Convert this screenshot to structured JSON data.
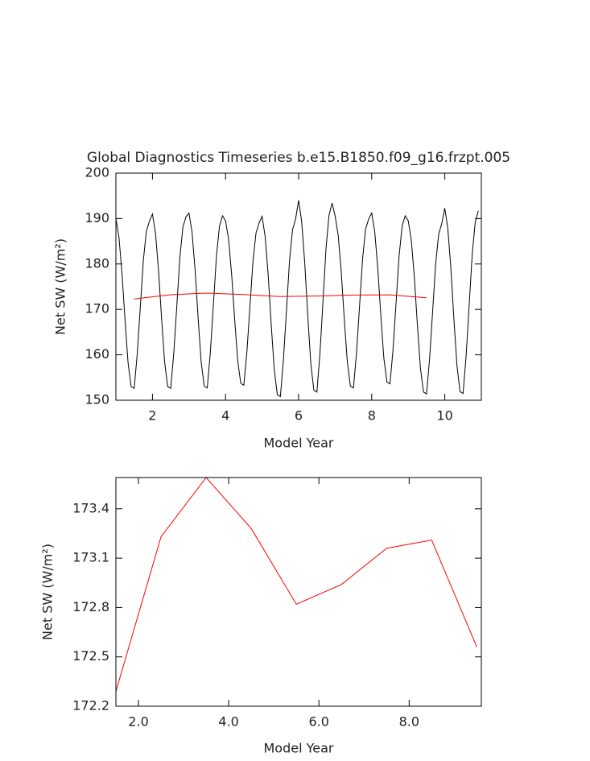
{
  "chart_data": [
    {
      "type": "line",
      "title": "Global Diagnostics Timeseries b.e15.B1850.f09_g16.frzpt.005",
      "x_label": "Model Year",
      "y_label": "Net SW (W/m²)",
      "xlim": [
        1,
        11
      ],
      "xticks": [
        2,
        4,
        6,
        8,
        10
      ],
      "ylim": [
        150,
        200
      ],
      "yticks": [
        150,
        160,
        170,
        180,
        190,
        200
      ],
      "series": [
        {
          "color": "#000000",
          "x": [
            1,
            1.083,
            1.167,
            1.25,
            1.333,
            1.417,
            1.5,
            1.583,
            1.667,
            1.75,
            1.833,
            1.917,
            2,
            2.083,
            2.167,
            2.25,
            2.333,
            2.417,
            2.5,
            2.583,
            2.667,
            2.75,
            2.833,
            2.917,
            3,
            3.083,
            3.167,
            3.25,
            3.333,
            3.417,
            3.5,
            3.583,
            3.667,
            3.75,
            3.833,
            3.917,
            4,
            4.083,
            4.167,
            4.25,
            4.333,
            4.417,
            4.5,
            4.583,
            4.667,
            4.75,
            4.833,
            4.917,
            5,
            5.083,
            5.167,
            5.25,
            5.333,
            5.417,
            5.5,
            5.583,
            5.667,
            5.75,
            5.833,
            5.917,
            6,
            6.083,
            6.167,
            6.25,
            6.333,
            6.417,
            6.5,
            6.583,
            6.667,
            6.75,
            6.833,
            6.917,
            7,
            7.083,
            7.167,
            7.25,
            7.333,
            7.417,
            7.5,
            7.583,
            7.667,
            7.75,
            7.833,
            7.917,
            8,
            8.083,
            8.167,
            8.25,
            8.333,
            8.417,
            8.5,
            8.583,
            8.667,
            8.75,
            8.833,
            8.917,
            9,
            9.083,
            9.167,
            9.25,
            9.333,
            9.417,
            9.5,
            9.583,
            9.667,
            9.75,
            9.833,
            9.917,
            10,
            10.083,
            10.167,
            10.25,
            10.333,
            10.417,
            10.5,
            10.583,
            10.667,
            10.75,
            10.833,
            10.917
          ],
          "values": [
            190.0,
            185.9,
            177.9,
            167.6,
            158.2,
            153.0,
            152.6,
            160.1,
            170.4,
            180.7,
            187.2,
            189.4,
            191.0,
            186.8,
            178.5,
            168.0,
            158.4,
            153.0,
            152.6,
            160.3,
            170.8,
            181.4,
            188.1,
            190.4,
            191.2,
            187.0,
            178.7,
            168.1,
            158.4,
            153.1,
            152.7,
            160.4,
            170.9,
            181.6,
            188.3,
            190.6,
            189.5,
            185.5,
            177.7,
            167.8,
            158.7,
            153.7,
            153.3,
            160.5,
            170.5,
            180.5,
            186.8,
            189.0,
            190.5,
            186.1,
            177.6,
            166.7,
            156.8,
            151.2,
            150.8,
            158.7,
            169.7,
            180.6,
            187.5,
            189.9,
            194.0,
            189.4,
            180.3,
            168.7,
            158.1,
            152.2,
            151.8,
            160.2,
            171.8,
            183.5,
            190.8,
            193.4,
            190.5,
            186.3,
            178.2,
            167.8,
            158.4,
            153.1,
            152.7,
            160.3,
            170.7,
            181.1,
            187.7,
            189.9,
            191.2,
            187.1,
            179.0,
            168.6,
            159.2,
            154.0,
            153.6,
            161.1,
            171.5,
            181.8,
            188.4,
            190.6,
            189.5,
            185.3,
            177.1,
            166.6,
            157.1,
            151.8,
            151.4,
            159.0,
            169.5,
            180.0,
            186.6,
            188.9,
            192.3,
            187.8,
            179.0,
            167.8,
            157.6,
            151.9,
            151.5,
            159.7,
            170.9,
            182.1,
            189.2,
            191.7
          ]
        },
        {
          "color": "#ff0000",
          "x": [
            1.5,
            2.5,
            3.5,
            4.5,
            5.5,
            6.5,
            7.5,
            8.5,
            9.5
          ],
          "values": [
            172.29,
            173.23,
            173.59,
            173.28,
            172.82,
            172.94,
            173.16,
            173.21,
            172.56
          ]
        }
      ]
    },
    {
      "type": "line",
      "x_label": "Model Year",
      "y_label": "Net SW (W/m²)",
      "xlim": [
        1.5,
        9.6
      ],
      "xticks": [
        {
          "value": 2,
          "label": "2.0"
        },
        {
          "value": 4,
          "label": "4.0"
        },
        {
          "value": 6,
          "label": "6.0"
        },
        {
          "value": 8,
          "label": "8.0"
        }
      ],
      "ylim": [
        172.2,
        173.59
      ],
      "yticks": [
        172.2,
        172.5,
        172.8,
        173.1,
        173.4
      ],
      "series": [
        {
          "color": "#ff0000",
          "x": [
            1.5,
            2.5,
            3.5,
            4.5,
            5.5,
            6.5,
            7.5,
            8.5,
            9.5
          ],
          "values": [
            172.29,
            173.23,
            173.59,
            173.28,
            172.82,
            172.94,
            173.16,
            173.21,
            172.56
          ]
        }
      ]
    }
  ]
}
